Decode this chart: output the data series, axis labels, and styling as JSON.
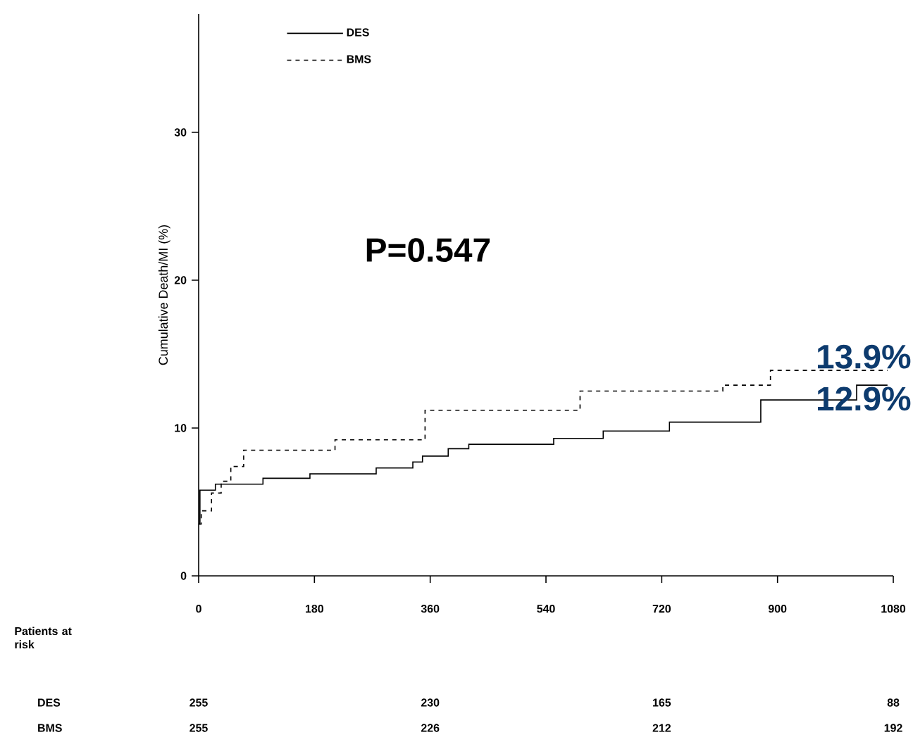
{
  "chart_data": {
    "type": "step",
    "ylabel": "Cumulative Death/MI (%)",
    "xlim": [
      0,
      1080
    ],
    "ylim": [
      0,
      38
    ],
    "xticks": [
      0,
      180,
      360,
      540,
      720,
      900,
      1080
    ],
    "yticks": [
      0,
      10,
      20,
      30
    ],
    "legend": "top left",
    "grid": false,
    "series": [
      {
        "name": "DES",
        "color": "#000000",
        "line_style": "solid",
        "x": [
          0,
          2,
          26,
          100,
          173,
          276,
          333,
          348,
          388,
          420,
          552,
          629,
          732,
          874,
          1023,
          1071
        ],
        "values": [
          3.5,
          5.8,
          6.2,
          6.6,
          6.9,
          7.3,
          7.7,
          8.1,
          8.6,
          8.9,
          9.3,
          9.8,
          10.4,
          11.9,
          12.9,
          12.9
        ]
      },
      {
        "name": "BMS",
        "color": "#000000",
        "line_style": "dashed",
        "x": [
          0,
          4,
          20,
          35,
          50,
          70,
          212,
          352,
          593,
          815,
          889,
          1071
        ],
        "values": [
          3.5,
          4.4,
          5.6,
          6.4,
          7.4,
          8.5,
          9.2,
          11.2,
          12.5,
          12.9,
          13.9,
          13.9
        ]
      }
    ],
    "annotations": [
      "P=0.547",
      {
        "text": "13.9%",
        "x": 1080,
        "y": 13.9
      },
      {
        "text": "12.9%",
        "x": 1080,
        "y": 12.9
      },
      "Patients at risk",
      "DES",
      "BMS",
      "255",
      "230",
      "165",
      "88",
      "255",
      "226",
      "212",
      "192"
    ]
  }
}
